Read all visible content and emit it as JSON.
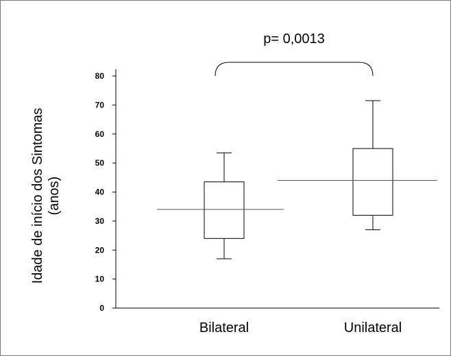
{
  "chart_data": {
    "type": "box",
    "ylabel_line1": "Idade de início dos Sintomas",
    "ylabel_line2": "(anos)",
    "ylim": [
      0,
      80
    ],
    "yticks": [
      0,
      10,
      20,
      30,
      40,
      50,
      60,
      70,
      80
    ],
    "categories": [
      "Bilateral",
      "Unilateral"
    ],
    "boxes": [
      {
        "category": "Bilateral",
        "min": 17,
        "q1": 24,
        "median": 34,
        "q3": 43.5,
        "max": 53.5
      },
      {
        "category": "Unilateral",
        "min": 27,
        "q1": 32,
        "median": 44,
        "q3": 55,
        "max": 71.5
      }
    ],
    "annotation": "p= 0,0013",
    "grid": false,
    "colors": {
      "box_stroke": "#000000",
      "median_line": "#555555",
      "axis": "#000000"
    }
  }
}
